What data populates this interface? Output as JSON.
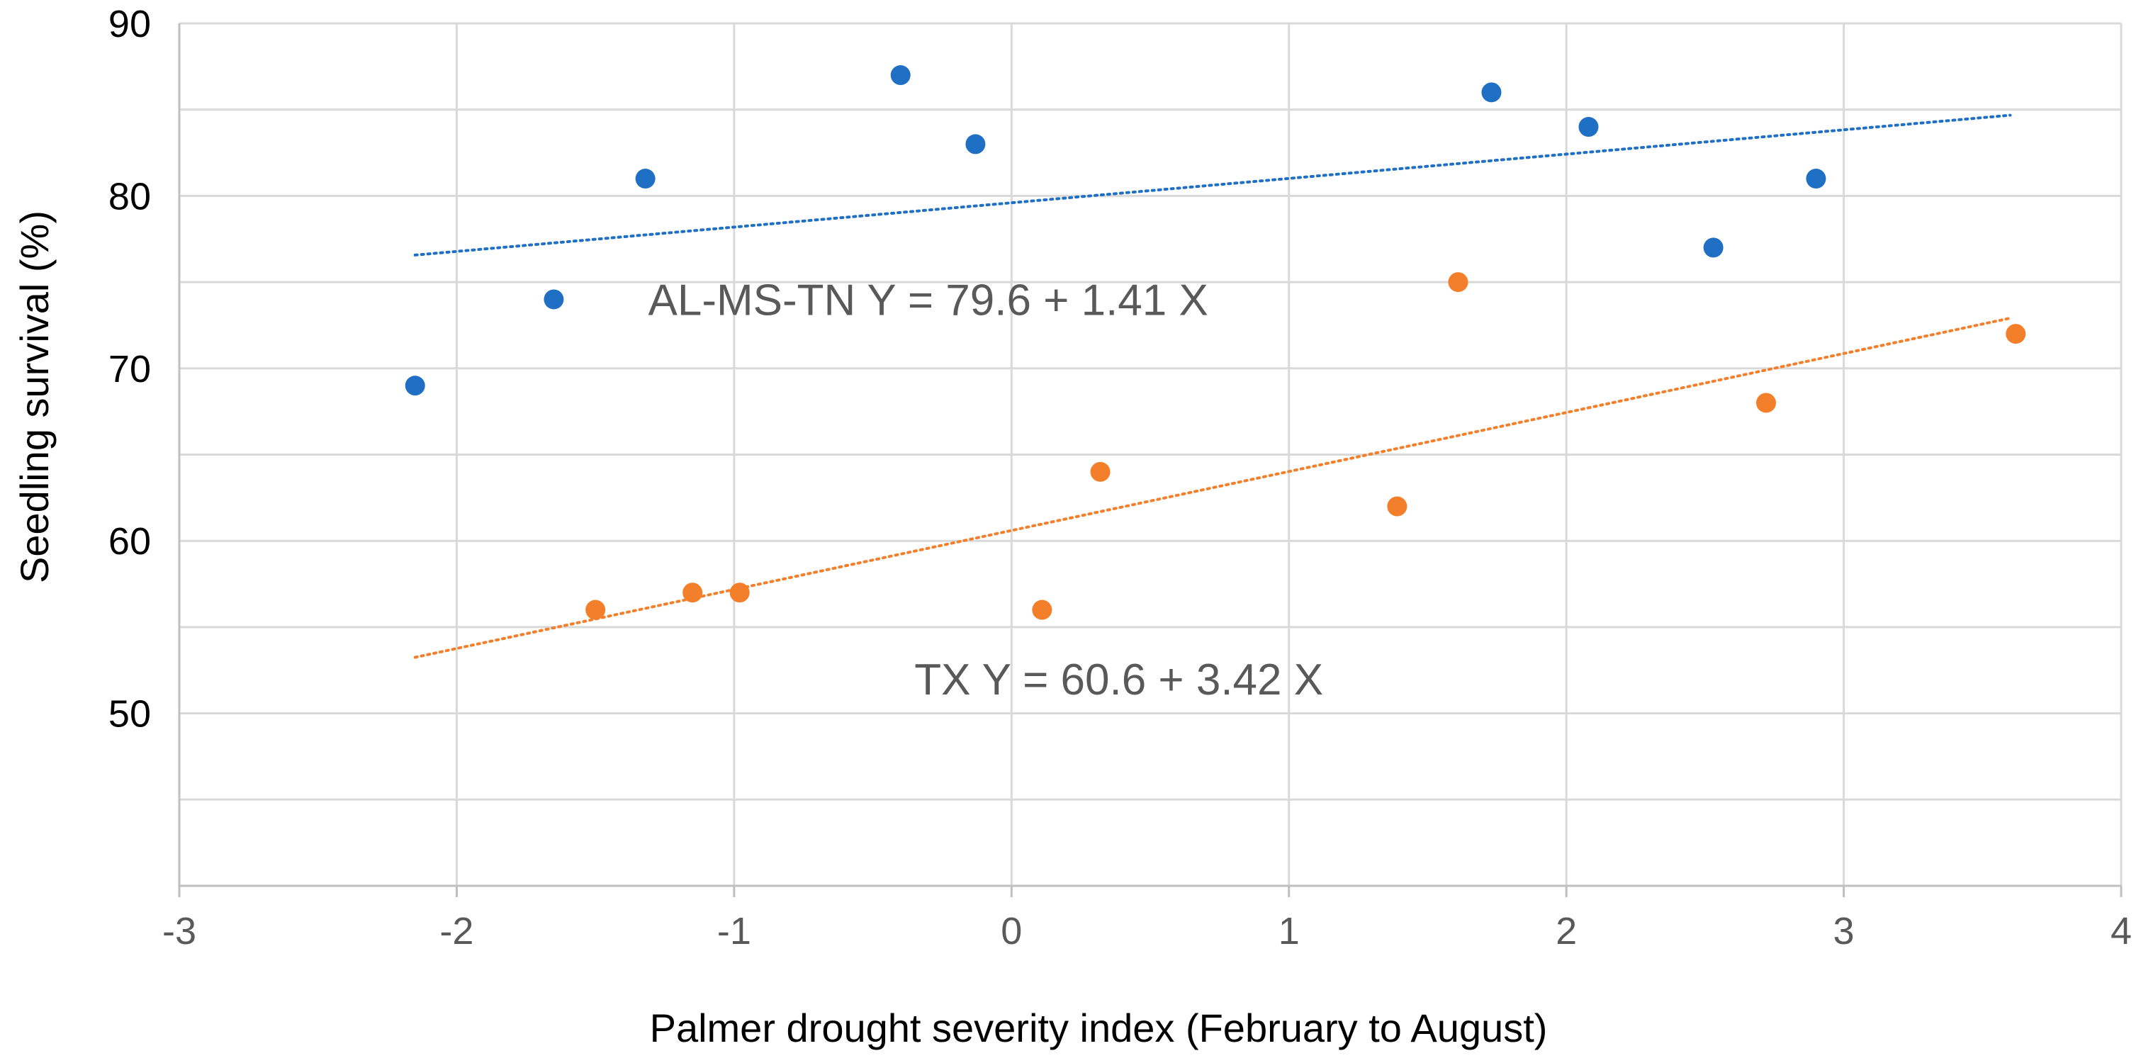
{
  "chart_data": {
    "type": "scatter",
    "title": "",
    "xlabel": "Palmer drought severity index (February to August)",
    "ylabel": "Seedling survival (%)",
    "xlim": [
      -3,
      4
    ],
    "ylim": [
      40,
      90
    ],
    "x_ticks": [
      -3,
      -2,
      -1,
      0,
      1,
      2,
      3,
      4
    ],
    "x_tick_labels": [
      "-3",
      "-2",
      "-1",
      "0",
      "1",
      "2",
      "3",
      "4"
    ],
    "y_ticks": [
      50,
      60,
      70,
      80,
      90
    ],
    "y_tick_labels": [
      "50",
      "60",
      "70",
      "80",
      "90"
    ],
    "y_grid_step": 5,
    "grid": true,
    "series": [
      {
        "name": "AL-MS-TN",
        "color": "#1f6fc5",
        "x": [
          -2.15,
          -1.65,
          -1.32,
          -0.4,
          -0.13,
          1.73,
          2.08,
          2.53,
          2.9
        ],
        "y": [
          69,
          74,
          81,
          87,
          83,
          86,
          84,
          77,
          81
        ],
        "trendline": {
          "intercept": 79.6,
          "slope": 1.41,
          "x_range": [
            -2.15,
            3.6
          ]
        }
      },
      {
        "name": "TX",
        "color": "#f47f2a",
        "x": [
          -1.5,
          -1.15,
          -0.98,
          0.11,
          0.32,
          1.39,
          1.61,
          2.72,
          3.62
        ],
        "y": [
          56,
          57,
          57,
          56,
          64,
          62,
          75,
          68,
          72
        ],
        "trendline": {
          "intercept": 60.6,
          "slope": 3.42,
          "x_range": [
            -2.15,
            3.6
          ]
        }
      }
    ],
    "annotations": [
      {
        "text": "AL-MS-TN  Y = 79.6 + 1.41 X",
        "series": "AL-MS-TN",
        "at_x": -1.31,
        "at_y": 74
      },
      {
        "text": "TX   Y = 60.6 + 3.42 X",
        "series": "TX",
        "at_x": -0.35,
        "at_y": 52
      }
    ]
  }
}
